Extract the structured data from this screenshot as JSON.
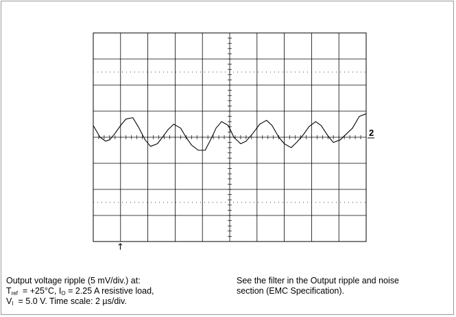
{
  "chart_data": {
    "type": "line",
    "title": "",
    "xlabel": "",
    "ylabel": "",
    "x_divisions": 10,
    "y_divisions": 8,
    "xlim": [
      0,
      10
    ],
    "ylim": [
      -4,
      4
    ],
    "grid": true,
    "channel_marker": "2",
    "trigger_marker": "↑",
    "series": [
      {
        "x": [
          0.0,
          0.25,
          0.45,
          0.6,
          0.8,
          1.0,
          1.2,
          1.45,
          1.65,
          1.9,
          2.1,
          2.35,
          2.5,
          2.75,
          2.95,
          3.2,
          3.4,
          3.6,
          3.85,
          4.1,
          4.3,
          4.5,
          4.7,
          4.95,
          5.15,
          5.4,
          5.6,
          5.85,
          6.1,
          6.35,
          6.55,
          6.8,
          7.0,
          7.25,
          7.45,
          7.7,
          7.9,
          8.15,
          8.35,
          8.6,
          8.8,
          9.05,
          9.3,
          9.5,
          9.75,
          10.0
        ],
        "y": [
          0.45,
          0.0,
          -0.15,
          -0.1,
          0.15,
          0.45,
          0.7,
          0.75,
          0.4,
          -0.1,
          -0.35,
          -0.25,
          -0.05,
          0.3,
          0.5,
          0.35,
          0.0,
          -0.3,
          -0.5,
          -0.5,
          -0.1,
          0.35,
          0.6,
          0.45,
          0.0,
          -0.25,
          -0.15,
          0.15,
          0.5,
          0.65,
          0.45,
          0.0,
          -0.25,
          -0.4,
          -0.2,
          0.1,
          0.4,
          0.6,
          0.45,
          0.05,
          -0.2,
          -0.1,
          0.15,
          0.35,
          0.8,
          0.9
        ]
      }
    ]
  },
  "captions": {
    "left": {
      "line1": "Output voltage ripple (5 mV/div.) at:",
      "line2_t": "T",
      "line2_t_sub": "ref",
      "line2_mid": "  = +25°C, I",
      "line2_i_sub": "O",
      "line2_end": " = 2.25 A resistive load,",
      "line3_v": "V",
      "line3_v_sub": "I",
      "line3_end": "  = 5.0 V. Time scale: 2 µs/div."
    },
    "right": {
      "line1": "See the filter in the Output ripple and noise",
      "line2": "section (EMC Specification)."
    }
  }
}
